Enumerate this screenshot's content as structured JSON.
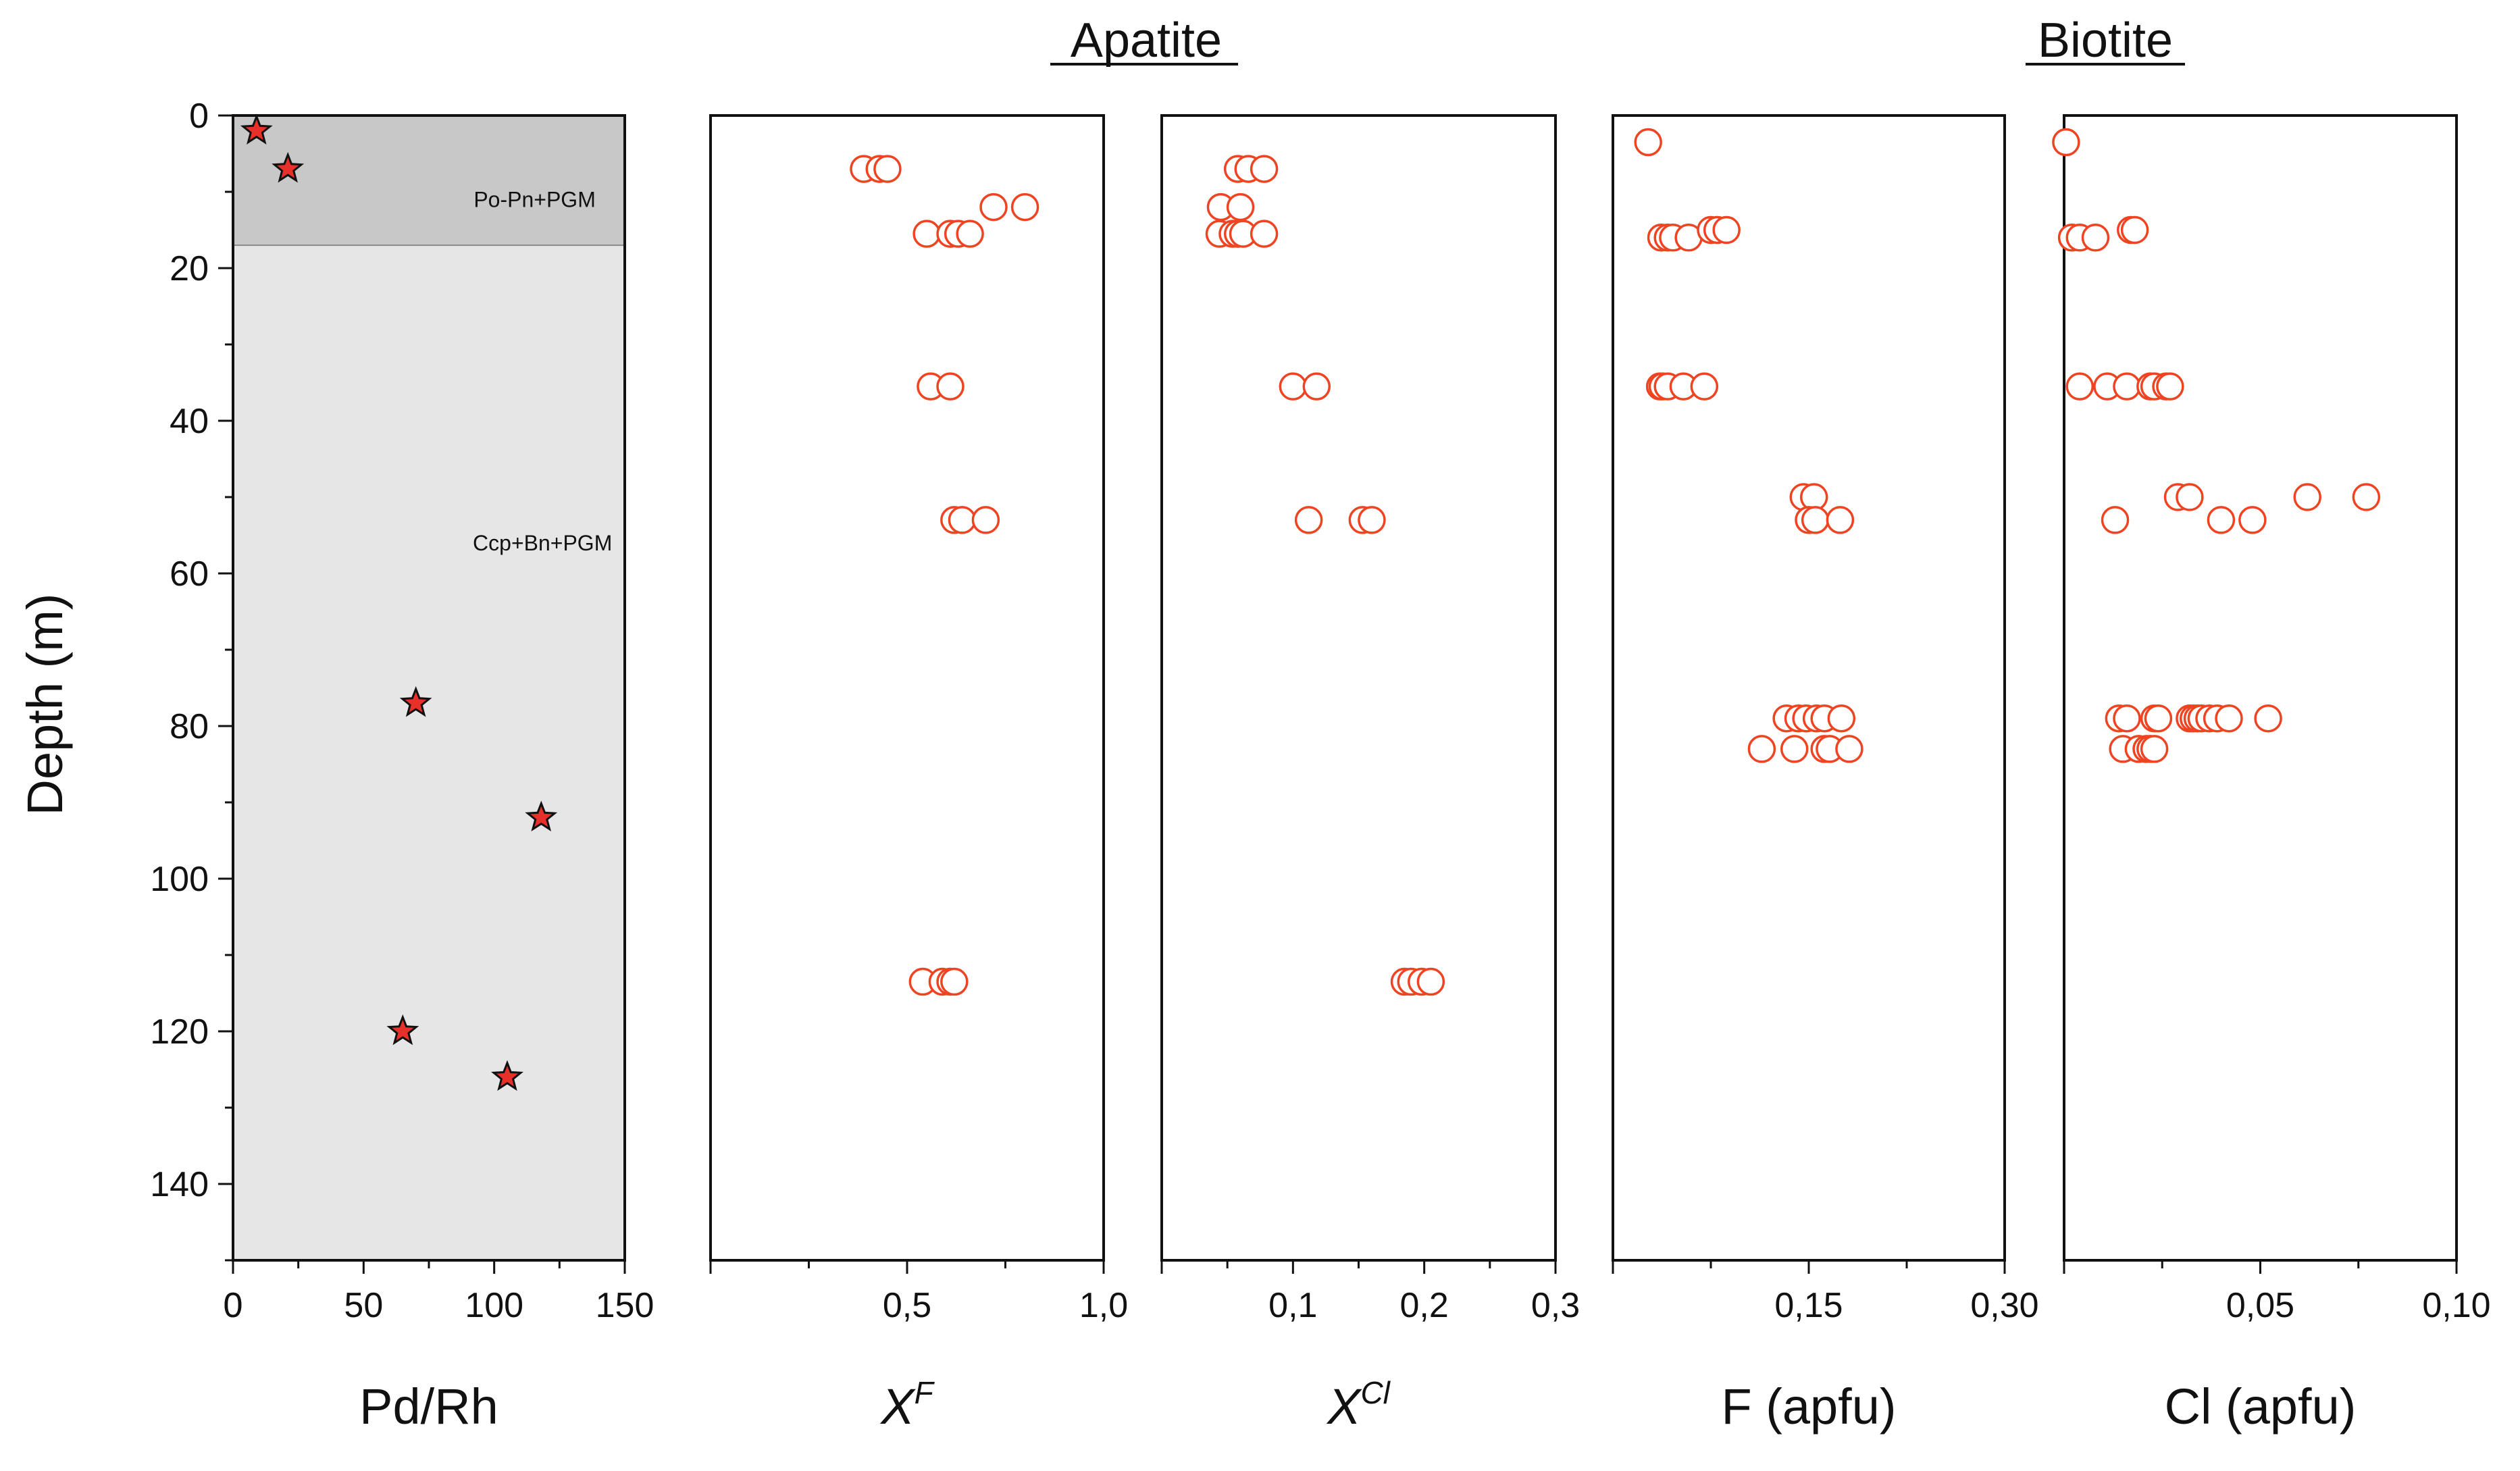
{
  "groups": {
    "apatite": "Apatite",
    "biotite": "Biotite"
  },
  "y_axis": {
    "label": "Depth (m)",
    "ylim": [
      0,
      150
    ],
    "ticks": [
      "0",
      "20",
      "40",
      "60",
      "80",
      "100",
      "120",
      "140"
    ]
  },
  "zones": [
    {
      "label": "Po-Pn+PGM",
      "from": 0,
      "to": 17,
      "color": "#c8c8c8"
    },
    {
      "label": "Ccp+Bn+PGM",
      "from": 17,
      "to": 150,
      "color": "#e6e6e6"
    }
  ],
  "colors": {
    "marker": "#ee4422",
    "star_fill": "#e8302a",
    "axis": "#111111"
  },
  "chart_data": [
    {
      "id": "pdrh",
      "type": "scatter",
      "marker": "star",
      "xlabel": "Pd/Rh",
      "ylabel": "Depth (m)",
      "xlim": [
        0,
        150
      ],
      "ylim": [
        0,
        150
      ],
      "xticks": [
        0,
        50,
        100,
        150
      ],
      "xtick_labels": [
        "0",
        "50",
        "100",
        "150"
      ],
      "points": [
        [
          9,
          2
        ],
        [
          21,
          7
        ],
        [
          70,
          77
        ],
        [
          118,
          92
        ],
        [
          65,
          120
        ],
        [
          105,
          126
        ]
      ]
    },
    {
      "id": "apatite-xf",
      "type": "scatter",
      "marker": "circle",
      "group": "Apatite",
      "xlabel_main": "X",
      "xlabel_sup": "F",
      "xlim": [
        0,
        1.0
      ],
      "ylim": [
        0,
        150
      ],
      "xticks": [
        0.5,
        1.0
      ],
      "xtick_labels": [
        "0,5",
        "1,0"
      ],
      "points": [
        [
          0.39,
          7
        ],
        [
          0.43,
          7
        ],
        [
          0.45,
          7
        ],
        [
          0.72,
          12
        ],
        [
          0.8,
          12
        ],
        [
          0.55,
          15.5
        ],
        [
          0.61,
          15.5
        ],
        [
          0.63,
          15.5
        ],
        [
          0.66,
          15.5
        ],
        [
          0.56,
          35.5
        ],
        [
          0.61,
          35.5
        ],
        [
          0.62,
          53
        ],
        [
          0.64,
          53
        ],
        [
          0.7,
          53
        ],
        [
          0.54,
          113.5
        ],
        [
          0.59,
          113.5
        ],
        [
          0.61,
          113.5
        ],
        [
          0.62,
          113.5
        ]
      ]
    },
    {
      "id": "apatite-xcl",
      "type": "scatter",
      "marker": "circle",
      "group": "Apatite",
      "xlabel_main": "X",
      "xlabel_sup": "Cl",
      "xlim": [
        0,
        0.3
      ],
      "ylim": [
        0,
        150
      ],
      "xticks": [
        0.1,
        0.2,
        0.3
      ],
      "xtick_labels": [
        "0,1",
        "0,2",
        "0,3"
      ],
      "points": [
        [
          0.058,
          7
        ],
        [
          0.066,
          7
        ],
        [
          0.078,
          7
        ],
        [
          0.045,
          12
        ],
        [
          0.06,
          12
        ],
        [
          0.044,
          15.5
        ],
        [
          0.054,
          15.5
        ],
        [
          0.058,
          15.5
        ],
        [
          0.062,
          15.5
        ],
        [
          0.078,
          15.5
        ],
        [
          0.1,
          35.5
        ],
        [
          0.118,
          35.5
        ],
        [
          0.112,
          53
        ],
        [
          0.153,
          53
        ],
        [
          0.16,
          53
        ],
        [
          0.185,
          113.5
        ],
        [
          0.19,
          113.5
        ],
        [
          0.198,
          113.5
        ],
        [
          0.205,
          113.5
        ]
      ]
    },
    {
      "id": "biotite-f",
      "type": "scatter",
      "marker": "circle",
      "group": "Biotite",
      "xlabel": "F (apfu)",
      "xlim": [
        0,
        0.3
      ],
      "ylim": [
        0,
        150
      ],
      "xticks": [
        0.15,
        0.3
      ],
      "xtick_labels": [
        "0,15",
        "0,30"
      ],
      "points": [
        [
          0.027,
          3.5
        ],
        [
          0.037,
          16
        ],
        [
          0.042,
          16
        ],
        [
          0.046,
          16
        ],
        [
          0.058,
          16
        ],
        [
          0.075,
          15
        ],
        [
          0.08,
          15
        ],
        [
          0.087,
          15
        ],
        [
          0.036,
          35.5
        ],
        [
          0.038,
          35.5
        ],
        [
          0.042,
          35.5
        ],
        [
          0.054,
          35.5
        ],
        [
          0.07,
          35.5
        ],
        [
          0.146,
          50
        ],
        [
          0.154,
          50
        ],
        [
          0.15,
          53
        ],
        [
          0.155,
          53
        ],
        [
          0.174,
          53
        ],
        [
          0.133,
          79
        ],
        [
          0.142,
          79
        ],
        [
          0.148,
          79
        ],
        [
          0.156,
          79
        ],
        [
          0.162,
          79
        ],
        [
          0.175,
          79
        ],
        [
          0.114,
          83
        ],
        [
          0.139,
          83
        ],
        [
          0.162,
          83
        ],
        [
          0.166,
          83
        ],
        [
          0.181,
          83
        ]
      ]
    },
    {
      "id": "biotite-cl",
      "type": "scatter",
      "marker": "circle",
      "group": "Biotite",
      "xlabel": "Cl (apfu)",
      "xlim": [
        0,
        0.1
      ],
      "ylim": [
        0,
        150
      ],
      "xticks": [
        0.05,
        0.1
      ],
      "xtick_labels": [
        "0,05",
        "0,10"
      ],
      "points": [
        [
          0.0005,
          3.5
        ],
        [
          0.002,
          16
        ],
        [
          0.004,
          16
        ],
        [
          0.008,
          16
        ],
        [
          0.017,
          15
        ],
        [
          0.018,
          15
        ],
        [
          0.004,
          35.5
        ],
        [
          0.011,
          35.5
        ],
        [
          0.016,
          35.5
        ],
        [
          0.022,
          35.5
        ],
        [
          0.023,
          35.5
        ],
        [
          0.026,
          35.5
        ],
        [
          0.027,
          35.5
        ],
        [
          0.029,
          50
        ],
        [
          0.032,
          50
        ],
        [
          0.062,
          50
        ],
        [
          0.077,
          50
        ],
        [
          0.013,
          53
        ],
        [
          0.04,
          53
        ],
        [
          0.048,
          53
        ],
        [
          0.014,
          79
        ],
        [
          0.016,
          79
        ],
        [
          0.023,
          79
        ],
        [
          0.024,
          79
        ],
        [
          0.032,
          79
        ],
        [
          0.033,
          79
        ],
        [
          0.034,
          79
        ],
        [
          0.035,
          79
        ],
        [
          0.037,
          79
        ],
        [
          0.039,
          79
        ],
        [
          0.042,
          79
        ],
        [
          0.052,
          79
        ],
        [
          0.015,
          83
        ],
        [
          0.019,
          83
        ],
        [
          0.021,
          83
        ],
        [
          0.022,
          83
        ],
        [
          0.023,
          83
        ]
      ]
    }
  ]
}
